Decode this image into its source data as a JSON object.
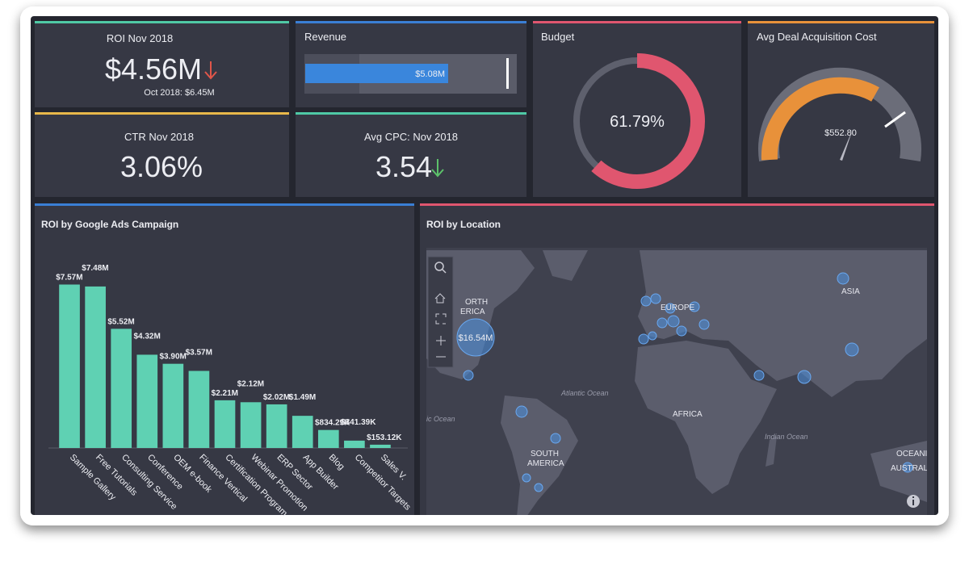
{
  "kpis": {
    "roi": {
      "title": "ROI Nov 2018",
      "value": "$4.56M",
      "comparison": "Oct 2018: $6.45M"
    },
    "ctr": {
      "title": "CTR Nov 2018",
      "value": "3.06%"
    },
    "revenue": {
      "title": "Revenue",
      "value": "$5.08M"
    },
    "cpc": {
      "title": "Avg CPC: Nov 2018",
      "value": "3.54"
    },
    "budget": {
      "title": "Budget",
      "value": 61.79,
      "label": "61.79%"
    },
    "deal_cost": {
      "title": "Avg Deal Acquisition Cost",
      "value": "$552.80"
    }
  },
  "chart_data": {
    "type": "bar",
    "title": "ROI by Google Ads Campaign",
    "categories": [
      "Sample Gallery",
      "Free Tutorials",
      "Consulting Service",
      "Conference",
      "OEM e-book",
      "Finance Vertical",
      "Certification Program",
      "Webinar Promotion",
      "ERP Sector",
      "App Builder",
      "Blog",
      "Competitor Targets",
      "Sales V."
    ],
    "values": [
      7570000,
      7480000,
      5520000,
      4320000,
      3900000,
      3570000,
      2210000,
      2120000,
      2020000,
      1490000,
      834290,
      341390,
      153120
    ],
    "value_labels": [
      "$7.57M",
      "$7.48M",
      "$5.52M",
      "$4.32M",
      "$3.90M",
      "$3.57M",
      "$2.21M",
      "$2.12M",
      "$2.02M",
      "$1.49M",
      "$834.29K",
      "$341.39K",
      "$153.12K"
    ],
    "color": "#5fd1b3",
    "ylim": [
      0,
      8000000
    ]
  },
  "map": {
    "title": "ROI by Location",
    "bubble_label": "$16.54M",
    "labels": [
      "ORTH",
      "ERICA",
      "EUROPE",
      "ASIA",
      "AFRICA",
      "SOUTH",
      "AMERICA",
      "OCEANI",
      "AUSTRAL"
    ],
    "oceans": [
      "Atlantic Ocean",
      "Indian Ocean",
      "ic Ocean"
    ]
  }
}
